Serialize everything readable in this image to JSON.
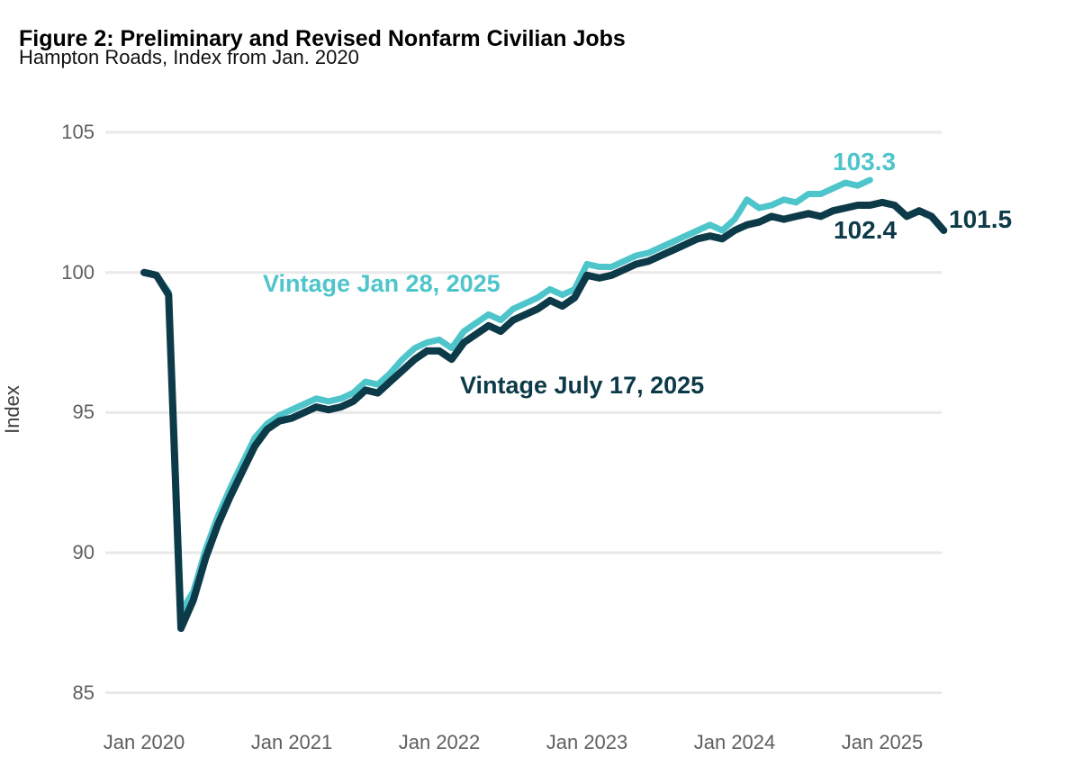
{
  "chart_data": {
    "type": "line",
    "title": "Figure 2: Preliminary and Revised Nonfarm Civilian Jobs",
    "subtitle": "Hampton Roads, Index from Jan. 2020",
    "ylabel": "Index",
    "ylim": [
      85,
      105
    ],
    "yticks": [
      105,
      100,
      95,
      90,
      85
    ],
    "grid": "horizontal-only",
    "legend": "inline-labels-on-chart",
    "x_axis": {
      "unit": "months since Jan 2020",
      "tick_labels": [
        "Jan 2020",
        "Jan 2021",
        "Jan 2022",
        "Jan 2023",
        "Jan 2024",
        "Jan 2025"
      ],
      "tick_months": [
        0,
        12,
        24,
        36,
        48,
        60
      ]
    },
    "series": [
      {
        "name": "Vintage Jan 28, 2025",
        "color": "#4ec5cb",
        "start": "Jan 2020",
        "end": "Dec 2024",
        "values": [
          100.0,
          99.9,
          99.3,
          87.9,
          88.6,
          90.1,
          91.3,
          92.3,
          93.2,
          94.1,
          94.6,
          94.9,
          95.1,
          95.3,
          95.5,
          95.4,
          95.5,
          95.7,
          96.1,
          96.0,
          96.4,
          96.9,
          97.3,
          97.5,
          97.6,
          97.3,
          97.9,
          98.2,
          98.5,
          98.3,
          98.7,
          98.9,
          99.1,
          99.4,
          99.2,
          99.4,
          100.3,
          100.2,
          100.2,
          100.4,
          100.6,
          100.7,
          100.9,
          101.1,
          101.3,
          101.5,
          101.7,
          101.5,
          101.9,
          102.6,
          102.3,
          102.4,
          102.6,
          102.5,
          102.8,
          102.8,
          103.0,
          103.2,
          103.1,
          103.3
        ]
      },
      {
        "name": "Vintage July 17, 2025",
        "color": "#0d3a48",
        "start": "Jan 2020",
        "end": "Jun 2025",
        "values": [
          100.0,
          99.9,
          99.2,
          87.3,
          88.3,
          89.8,
          91.0,
          92.0,
          92.9,
          93.8,
          94.4,
          94.7,
          94.8,
          95.0,
          95.2,
          95.1,
          95.2,
          95.4,
          95.8,
          95.7,
          96.1,
          96.5,
          96.9,
          97.2,
          97.2,
          96.9,
          97.5,
          97.8,
          98.1,
          97.9,
          98.3,
          98.5,
          98.7,
          99.0,
          98.8,
          99.1,
          99.9,
          99.8,
          99.9,
          100.1,
          100.3,
          100.4,
          100.6,
          100.8,
          101.0,
          101.2,
          101.3,
          101.2,
          101.5,
          101.7,
          101.8,
          102.0,
          101.9,
          102.0,
          102.1,
          102.0,
          102.2,
          102.3,
          102.4,
          102.4,
          102.5,
          102.4,
          102.0,
          102.2,
          102.0,
          101.5
        ]
      }
    ],
    "annotations": {
      "series1_label": {
        "text": "Vintage Jan 28, 2025",
        "color": "#4ec5cb"
      },
      "series2_label": {
        "text": "Vintage July 17, 2025",
        "color": "#0d3a48"
      },
      "end1": {
        "text": "103.3",
        "color": "#4ec5cb"
      },
      "mid2": {
        "text": "102.4",
        "color": "#0d3a48"
      },
      "end2": {
        "text": "101.5",
        "color": "#0d3a48"
      }
    },
    "style": {
      "gridline_color": "#e9e9e9",
      "tick_label_color": "#5f5f5f",
      "background": "#ffffff"
    }
  }
}
